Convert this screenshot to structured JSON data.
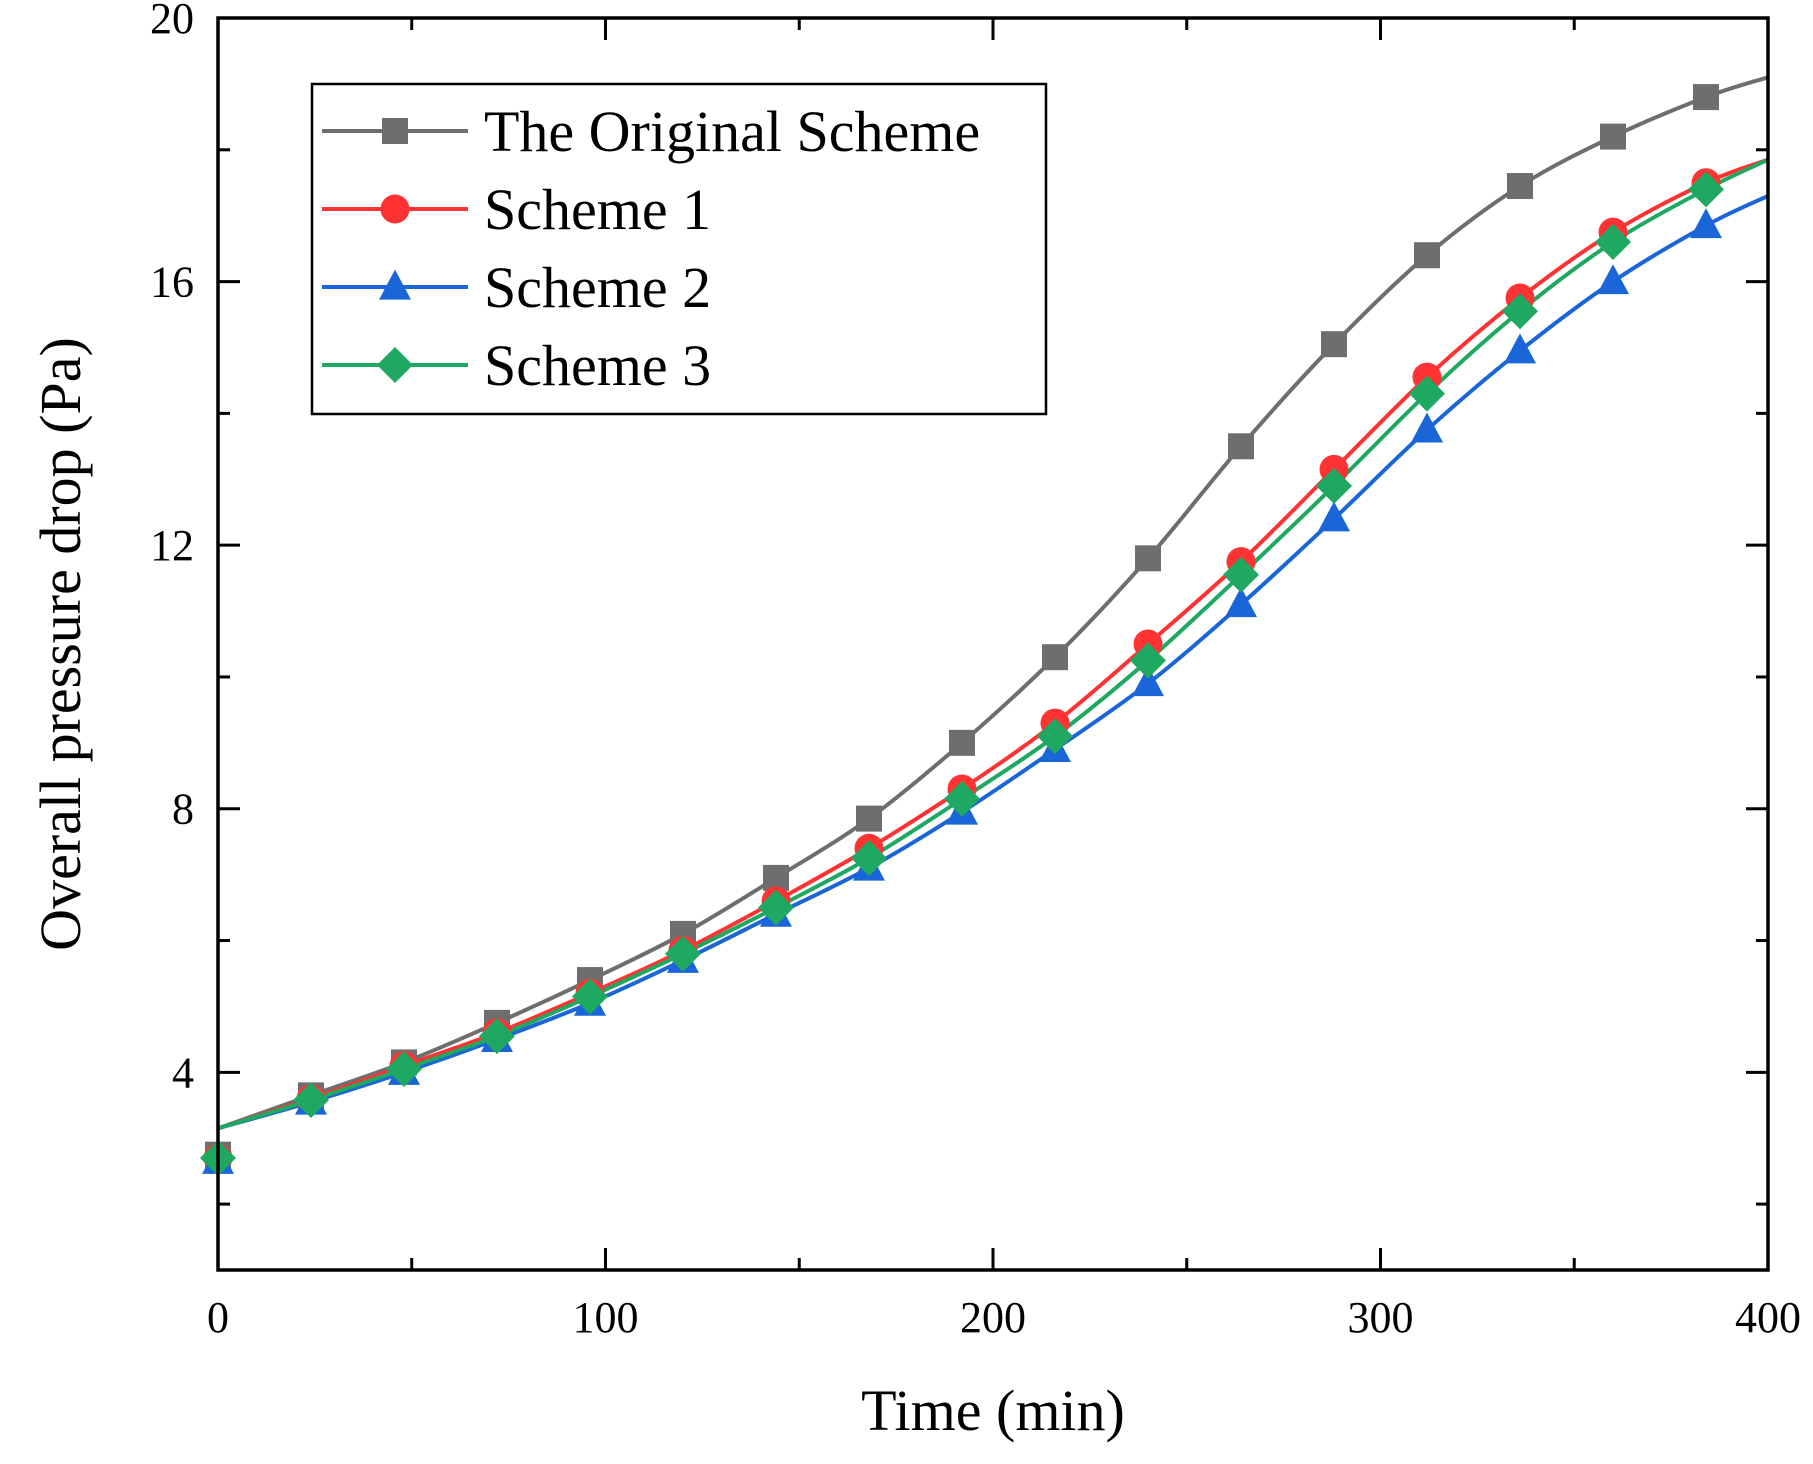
{
  "chart_data": {
    "type": "line",
    "title": "",
    "xlabel": "Time (min)",
    "ylabel": "Overall pressure drop (Pa)",
    "xlim": [
      0,
      400
    ],
    "ylim": [
      1,
      20
    ],
    "xticks": [
      0,
      100,
      200,
      300,
      400
    ],
    "yticks": [
      4,
      8,
      12,
      16,
      20
    ],
    "grid": false,
    "legend_position": "top-left",
    "x": [
      0,
      24,
      48,
      72,
      96,
      120,
      144,
      168,
      192,
      216,
      240,
      264,
      288,
      312,
      336,
      360,
      384
    ],
    "series": [
      {
        "name": "The Original Scheme",
        "color": "#6e6e6e",
        "marker": "square",
        "values": [
          2.75,
          3.65,
          4.15,
          4.75,
          5.4,
          6.1,
          6.95,
          7.85,
          9.0,
          10.3,
          11.8,
          13.5,
          15.05,
          16.4,
          17.45,
          18.2,
          18.8
        ]
      },
      {
        "name": "Scheme 1",
        "color": "#ff3333",
        "marker": "circle",
        "values": [
          2.7,
          3.6,
          4.1,
          4.6,
          5.2,
          5.85,
          6.6,
          7.4,
          8.3,
          9.3,
          10.5,
          11.75,
          13.15,
          14.55,
          15.75,
          16.75,
          17.5
        ]
      },
      {
        "name": "Scheme 2",
        "color": "#1a66d9",
        "marker": "triangle",
        "values": [
          2.65,
          3.55,
          4.0,
          4.5,
          5.05,
          5.7,
          6.4,
          7.1,
          7.95,
          8.9,
          9.9,
          11.1,
          12.4,
          13.75,
          14.95,
          16.0,
          16.85
        ]
      },
      {
        "name": "Scheme 3",
        "color": "#1ea861",
        "marker": "diamond",
        "values": [
          2.7,
          3.58,
          4.05,
          4.55,
          5.15,
          5.8,
          6.5,
          7.25,
          8.15,
          9.1,
          10.25,
          11.55,
          12.9,
          14.3,
          15.55,
          16.6,
          17.4
        ]
      }
    ],
    "line_end": {
      "x": 400,
      "values": [
        19.1,
        17.85,
        17.3,
        17.85
      ]
    }
  }
}
